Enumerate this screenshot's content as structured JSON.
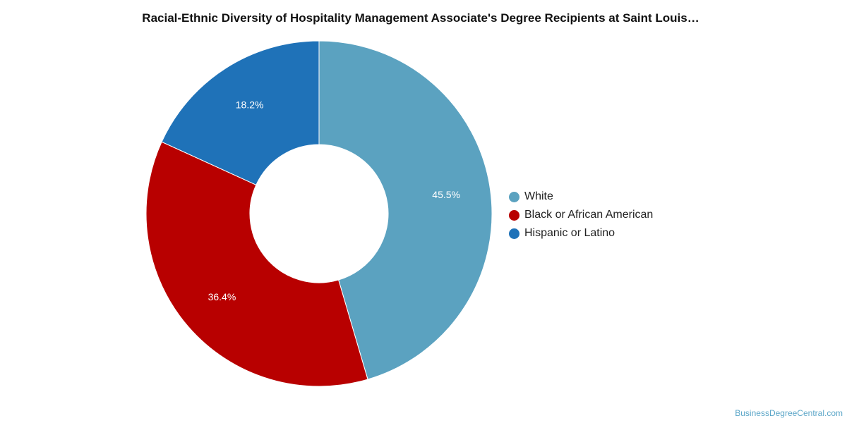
{
  "chart_data": {
    "type": "pie",
    "style": "donut",
    "title": "Racial-Ethnic Diversity of Hospitality Management Associate's Degree Recipients at Saint Louis…",
    "slices": [
      {
        "label": "White",
        "value": 45.5,
        "value_label": "45.5%",
        "color": "#5ba2c0"
      },
      {
        "label": "Black or African American",
        "value": 36.4,
        "value_label": "36.4%",
        "color": "#b80000"
      },
      {
        "label": "Hispanic or Latino",
        "value": 18.2,
        "value_label": "18.2%",
        "color": "#1f72b8"
      }
    ],
    "legend_position": "right"
  },
  "footer": {
    "source": "BusinessDegreeCentral.com"
  }
}
